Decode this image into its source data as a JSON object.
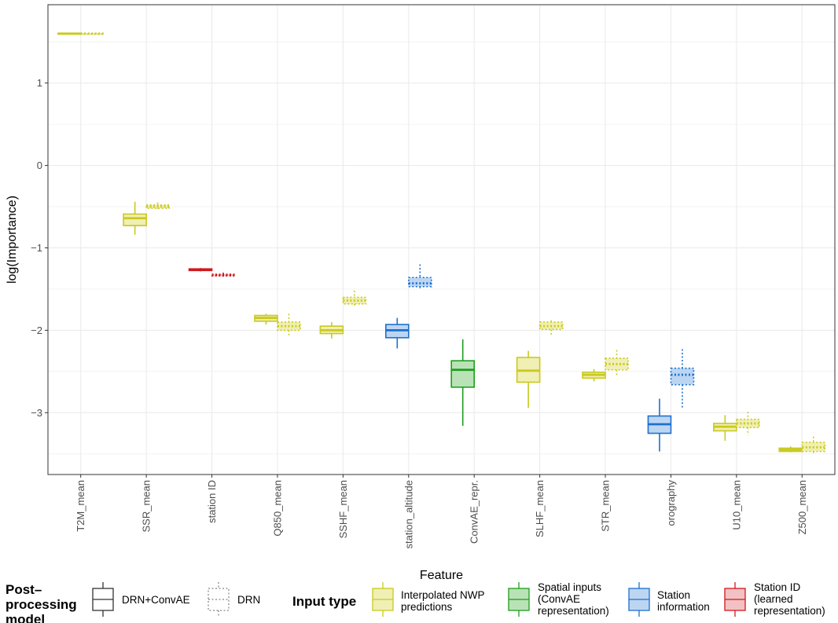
{
  "chart_data": {
    "type": "boxplot",
    "xlabel": "Feature",
    "ylabel": "log(Importance)",
    "ylim": [
      -3.75,
      1.95
    ],
    "yticks": [
      1,
      0,
      -1,
      -2,
      -3
    ],
    "ytick_labels": [
      "1",
      "0",
      "−1",
      "−2",
      "−3"
    ],
    "grid": true,
    "categories": [
      "T2M_mean",
      "SSR_mean",
      "station ID",
      "Q850_mean",
      "SSHF_mean",
      "station_altitude",
      "ConvAE_repr.",
      "SLHF_mean",
      "STR_mean",
      "orography",
      "U10_mean",
      "Z500_mean"
    ],
    "input_type_of_category": [
      "nwp",
      "nwp",
      "stationid",
      "nwp",
      "nwp",
      "station",
      "spatial",
      "nwp",
      "nwp",
      "station",
      "nwp",
      "nwp"
    ],
    "series": [
      {
        "model": "DRN+ConvAE",
        "line_style": "solid",
        "boxes": [
          {
            "category": "T2M_mean",
            "min": 1.595,
            "q1": 1.598,
            "median": 1.6,
            "q3": 1.602,
            "max": 1.605
          },
          {
            "category": "SSR_mean",
            "min": -0.84,
            "q1": -0.73,
            "median": -0.64,
            "q3": -0.59,
            "max": -0.44
          },
          {
            "category": "station ID",
            "min": -1.285,
            "q1": -1.275,
            "median": -1.265,
            "q3": -1.255,
            "max": -1.245
          },
          {
            "category": "Q850_mean",
            "min": -1.93,
            "q1": -1.89,
            "median": -1.85,
            "q3": -1.82,
            "max": -1.8
          },
          {
            "category": "SSHF_mean",
            "min": -2.1,
            "q1": -2.04,
            "median": -2.0,
            "q3": -1.95,
            "max": -1.9
          },
          {
            "category": "station_altitude",
            "min": -2.22,
            "q1": -2.09,
            "median": -2.0,
            "q3": -1.93,
            "max": -1.85
          },
          {
            "category": "ConvAE_repr.",
            "min": -3.16,
            "q1": -2.69,
            "median": -2.48,
            "q3": -2.37,
            "max": -2.11
          },
          {
            "category": "SLHF_mean",
            "min": -2.94,
            "q1": -2.63,
            "median": -2.49,
            "q3": -2.33,
            "max": -2.25
          },
          {
            "category": "STR_mean",
            "min": -2.62,
            "q1": -2.58,
            "median": -2.54,
            "q3": -2.51,
            "max": -2.47
          },
          {
            "category": "orography",
            "min": -3.47,
            "q1": -3.25,
            "median": -3.14,
            "q3": -3.04,
            "max": -2.83
          },
          {
            "category": "U10_mean",
            "min": -3.34,
            "q1": -3.22,
            "median": -3.17,
            "q3": -3.13,
            "max": -3.03
          },
          {
            "category": "Z500_mean",
            "min": -3.48,
            "q1": -3.47,
            "median": -3.45,
            "q3": -3.43,
            "max": -3.41
          }
        ]
      },
      {
        "model": "DRN",
        "line_style": "dotted",
        "boxes": [
          {
            "category": "T2M_mean",
            "min": 1.595,
            "q1": 1.597,
            "median": 1.6,
            "q3": 1.602,
            "max": 1.605
          },
          {
            "category": "SSR_mean",
            "min": -0.53,
            "q1": -0.52,
            "median": -0.5,
            "q3": -0.48,
            "max": -0.45
          },
          {
            "category": "station ID",
            "min": -1.35,
            "q1": -1.34,
            "median": -1.33,
            "q3": -1.32,
            "max": -1.3
          },
          {
            "category": "Q850_mean",
            "min": -2.08,
            "q1": -2.0,
            "median": -1.95,
            "q3": -1.9,
            "max": -1.8
          },
          {
            "category": "SSHF_mean",
            "min": -1.72,
            "q1": -1.68,
            "median": -1.64,
            "q3": -1.6,
            "max": -1.52
          },
          {
            "category": "station_altitude",
            "min": -1.49,
            "q1": -1.47,
            "median": -1.43,
            "q3": -1.36,
            "max": -1.2
          },
          {
            "category": "SLHF_mean",
            "min": -2.07,
            "q1": -1.99,
            "median": -1.95,
            "q3": -1.9,
            "max": -1.88
          },
          {
            "category": "STR_mean",
            "min": -2.56,
            "q1": -2.48,
            "median": -2.41,
            "q3": -2.34,
            "max": -2.24
          },
          {
            "category": "orography",
            "min": -2.96,
            "q1": -2.66,
            "median": -2.54,
            "q3": -2.46,
            "max": -2.23
          },
          {
            "category": "U10_mean",
            "min": -3.27,
            "q1": -3.18,
            "median": -3.13,
            "q3": -3.08,
            "max": -2.99
          },
          {
            "category": "Z500_mean",
            "min": -3.5,
            "q1": -3.47,
            "median": -3.42,
            "q3": -3.36,
            "max": -3.29
          }
        ]
      }
    ],
    "colors": {
      "nwp": {
        "line": "#c9c920",
        "fill": "#f0efb4",
        "label": "Interpolated NWP predictions"
      },
      "spatial": {
        "line": "#1e9d1e",
        "fill": "#b9e3b6",
        "label": "Spatial inputs (ConvAE representation)"
      },
      "station": {
        "line": "#1e6fd0",
        "fill": "#bcd6f2",
        "label": "Station information"
      },
      "stationid": {
        "line": "#d0181e",
        "fill": "#f3c1c3",
        "label": "Station ID (learned representation)"
      }
    },
    "legend": {
      "position": "bottom",
      "model_title": "Post–processing model",
      "model_items": [
        {
          "label": "DRN+ConvAE",
          "line_style": "solid"
        },
        {
          "label": "DRN",
          "line_style": "dotted"
        }
      ],
      "input_title": "Input type",
      "input_items": [
        {
          "key": "nwp",
          "label": "Interpolated NWP predictions"
        },
        {
          "key": "spatial",
          "label": "Spatial inputs (ConvAE representation)"
        },
        {
          "key": "station",
          "label": "Station information"
        },
        {
          "key": "stationid",
          "label": "Station ID (learned representation)"
        }
      ]
    }
  }
}
